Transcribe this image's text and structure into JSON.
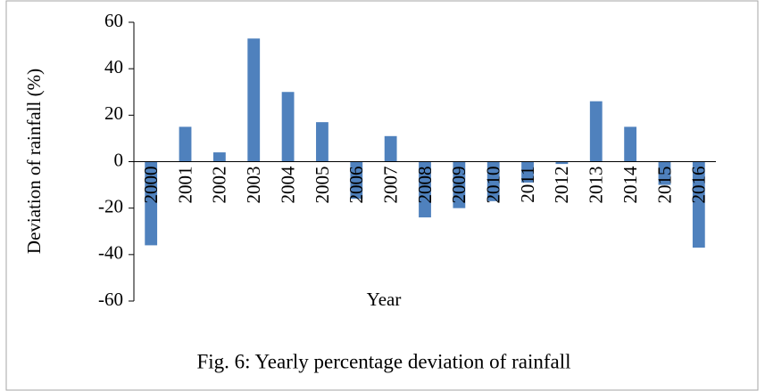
{
  "chart_data": {
    "type": "bar",
    "xlabel": "Year",
    "ylabel": "Deviation  of rainfall (%)",
    "caption": "Fig. 6: Yearly percentage deviation of rainfall",
    "categories": [
      "2000",
      "2001",
      "2002",
      "2003",
      "2004",
      "2005",
      "2006",
      "2007",
      "2008",
      "2009",
      "2010",
      "2011",
      "2012",
      "2013",
      "2014",
      "2015",
      "2016"
    ],
    "values": [
      -36,
      15,
      4,
      53,
      30,
      17,
      -16,
      11,
      -24,
      -20,
      -17,
      -9,
      -1,
      26,
      15,
      -10,
      -37
    ],
    "color": "#4f81bd",
    "ylim": [
      -60,
      60
    ],
    "yticks": [
      -60,
      -40,
      -20,
      0,
      20,
      40,
      60
    ],
    "grid": false
  }
}
